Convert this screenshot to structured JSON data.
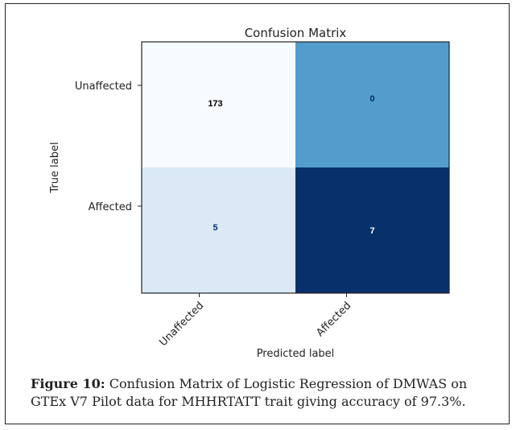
{
  "chart_data": {
    "type": "heatmap",
    "title": "Confusion Matrix",
    "xlabel": "Predicted label",
    "ylabel": "True label",
    "x_tick_labels": [
      "Unaffected",
      "Affected"
    ],
    "y_tick_labels": [
      "Unaffected",
      "Affected"
    ],
    "matrix": [
      [
        173,
        0
      ],
      [
        5,
        7
      ]
    ],
    "colormap": "Blues",
    "cell_colors": [
      [
        "#f7fbff",
        "#529dcc"
      ],
      [
        "#dbe9f6",
        "#08306b"
      ]
    ],
    "text_colors": [
      [
        "#000000",
        "#08306b"
      ],
      [
        "#08306b",
        "#ffffff"
      ]
    ]
  },
  "caption": {
    "label": "Figure 10:",
    "text": " Confusion Matrix of Logistic Regression of DMWAS on GTEx V7 Pilot data for MHHRTATT trait giving accuracy of 97.3%."
  }
}
